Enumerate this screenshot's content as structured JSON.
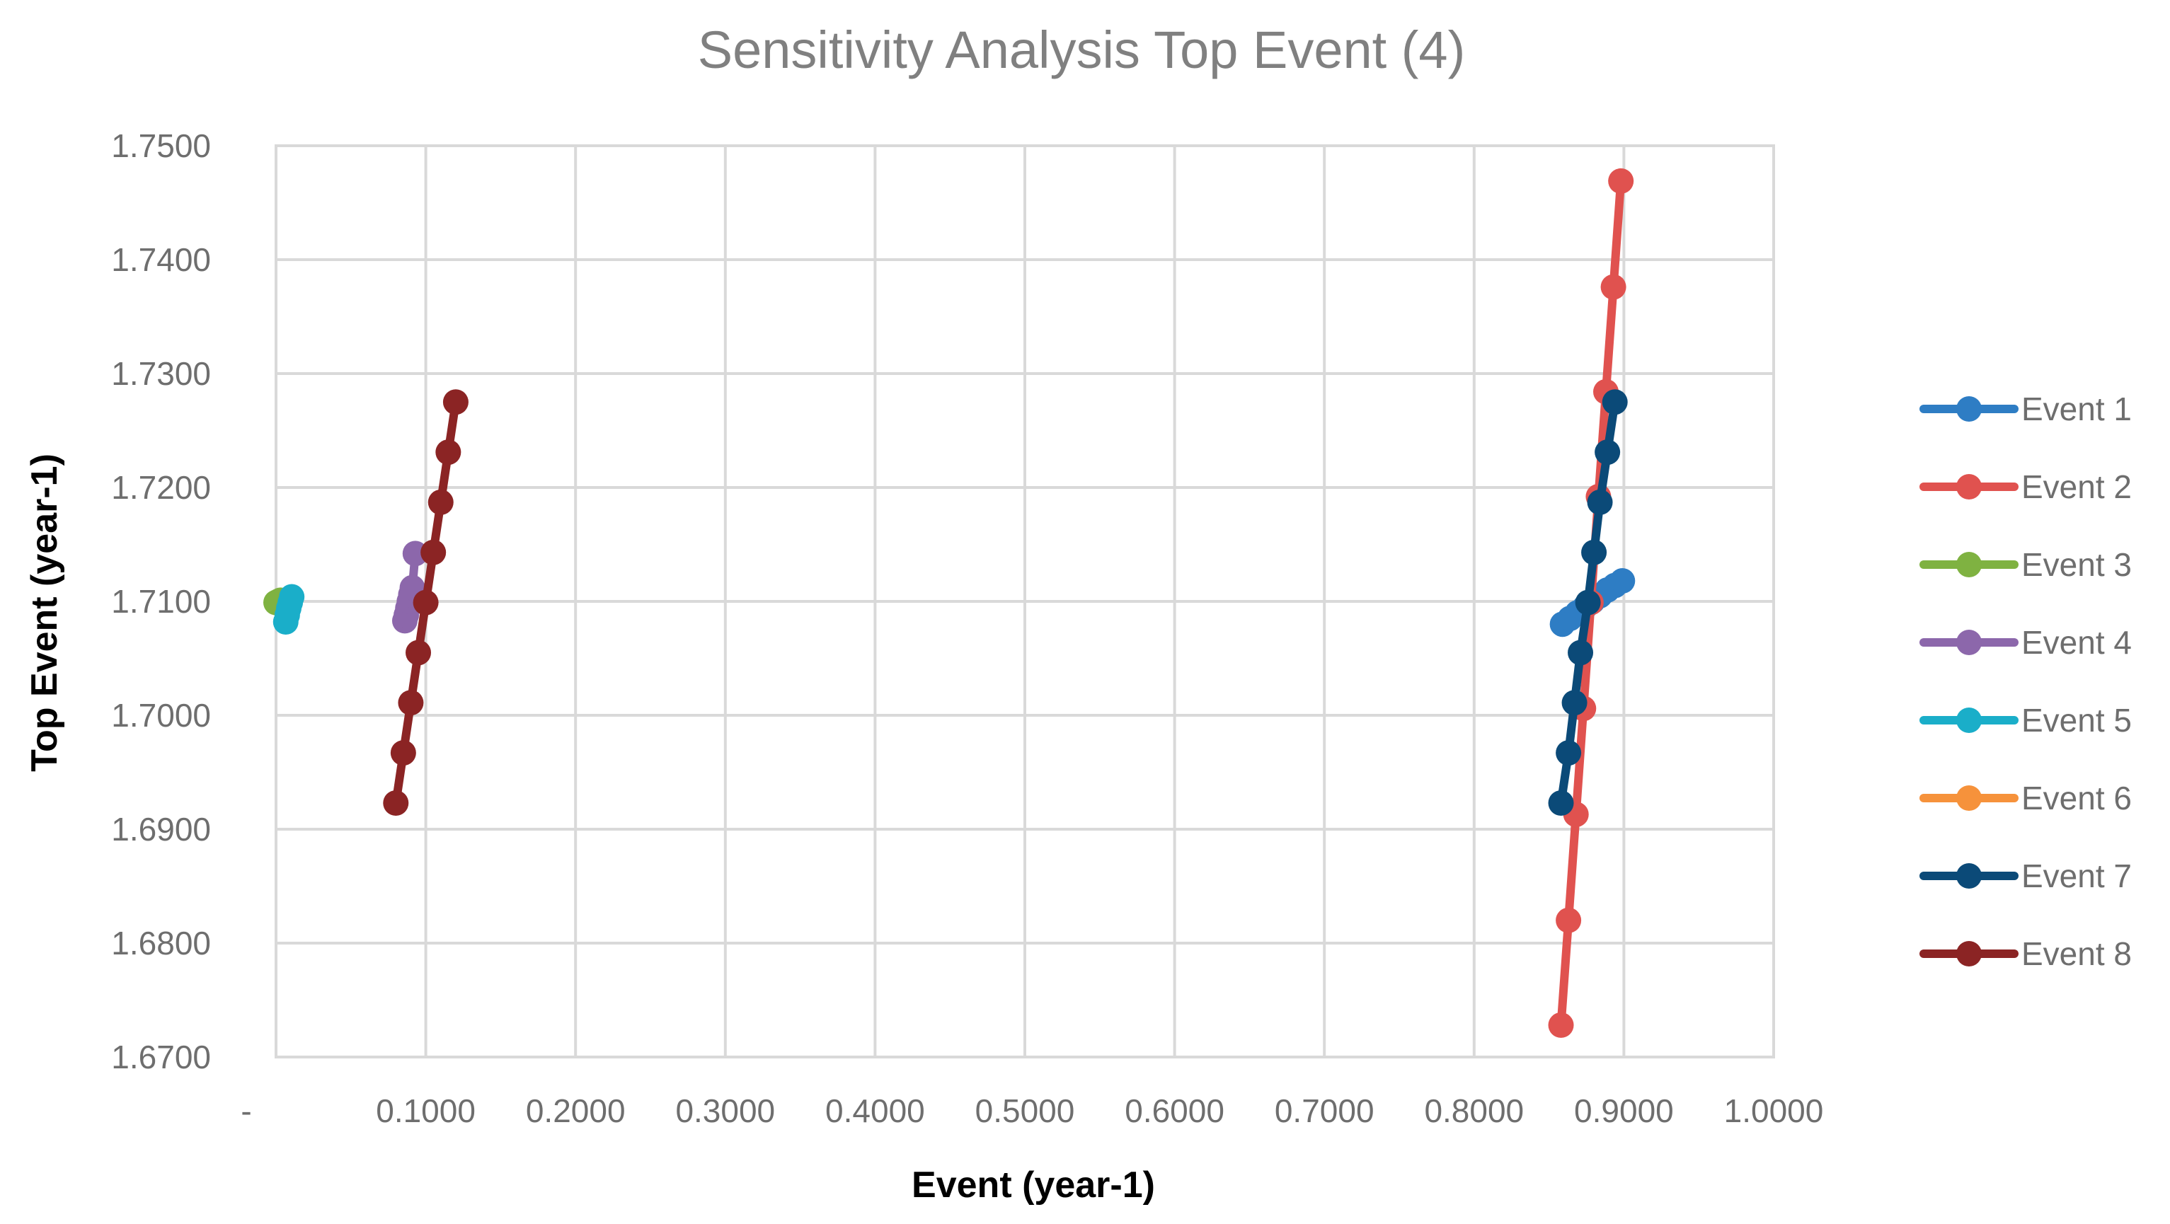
{
  "chart_data": {
    "type": "line",
    "title": "Sensitivity Analysis Top Event (4)",
    "xlabel": "Event (year-1)",
    "ylabel": "Top Event (year-1)",
    "xlim": [
      0,
      1.0
    ],
    "ylim": [
      1.67,
      1.75
    ],
    "x_ticks": [
      "-",
      "0.1000",
      "0.2000",
      "0.3000",
      "0.4000",
      "0.5000",
      "0.6000",
      "0.7000",
      "0.8000",
      "0.9000",
      "1.0000"
    ],
    "y_ticks": [
      "1.6700",
      "1.6800",
      "1.6900",
      "1.7000",
      "1.7100",
      "1.7200",
      "1.7300",
      "1.7400",
      "1.7500"
    ],
    "legend_position": "right",
    "series": [
      {
        "name": "Event 1",
        "color": "#2e7dc4",
        "x": [
          0.859,
          0.864,
          0.869,
          0.874,
          0.879,
          0.884,
          0.889,
          0.894,
          0.899
        ],
        "y": [
          1.708,
          1.7085,
          1.709,
          1.7095,
          1.71,
          1.7105,
          1.711,
          1.7114,
          1.7118
        ]
      },
      {
        "name": "Event 2",
        "color": "#e0524f",
        "x": [
          0.858,
          0.863,
          0.868,
          0.873,
          0.878,
          0.883,
          0.888,
          0.893,
          0.898
        ],
        "y": [
          1.6728,
          1.682,
          1.6913,
          1.7006,
          1.7099,
          1.7192,
          1.7284,
          1.7376,
          1.7469
        ]
      },
      {
        "name": "Event 3",
        "color": "#7fb241",
        "x": [
          0.0,
          0.0015,
          0.003
        ],
        "y": [
          1.7099,
          1.71,
          1.7101
        ]
      },
      {
        "name": "Event 4",
        "color": "#8c67ab",
        "x": [
          0.086,
          0.087,
          0.088,
          0.089,
          0.09,
          0.091,
          0.093
        ],
        "y": [
          1.7083,
          1.7088,
          1.7094,
          1.71,
          1.7106,
          1.7112,
          1.7142
        ]
      },
      {
        "name": "Event 5",
        "color": "#1aaec9",
        "x": [
          0.0065,
          0.0075,
          0.0085,
          0.0095,
          0.0105
        ],
        "y": [
          1.7082,
          1.7088,
          1.7094,
          1.7099,
          1.7104
        ]
      },
      {
        "name": "Event 6",
        "color": "#f6923b",
        "x": [],
        "y": []
      },
      {
        "name": "Event 7",
        "color": "#0b4a78",
        "x": [
          0.858,
          0.863,
          0.867,
          0.871,
          0.876,
          0.88,
          0.884,
          0.889,
          0.894
        ],
        "y": [
          1.6923,
          1.6967,
          1.7011,
          1.7055,
          1.7099,
          1.7143,
          1.7187,
          1.7231,
          1.7275
        ]
      },
      {
        "name": "Event 8",
        "color": "#8b2424",
        "x": [
          0.08,
          0.085,
          0.09,
          0.095,
          0.1,
          0.105,
          0.11,
          0.115,
          0.12
        ],
        "y": [
          1.6923,
          1.6967,
          1.7011,
          1.7055,
          1.7099,
          1.7143,
          1.7187,
          1.7231,
          1.7275
        ]
      }
    ]
  }
}
